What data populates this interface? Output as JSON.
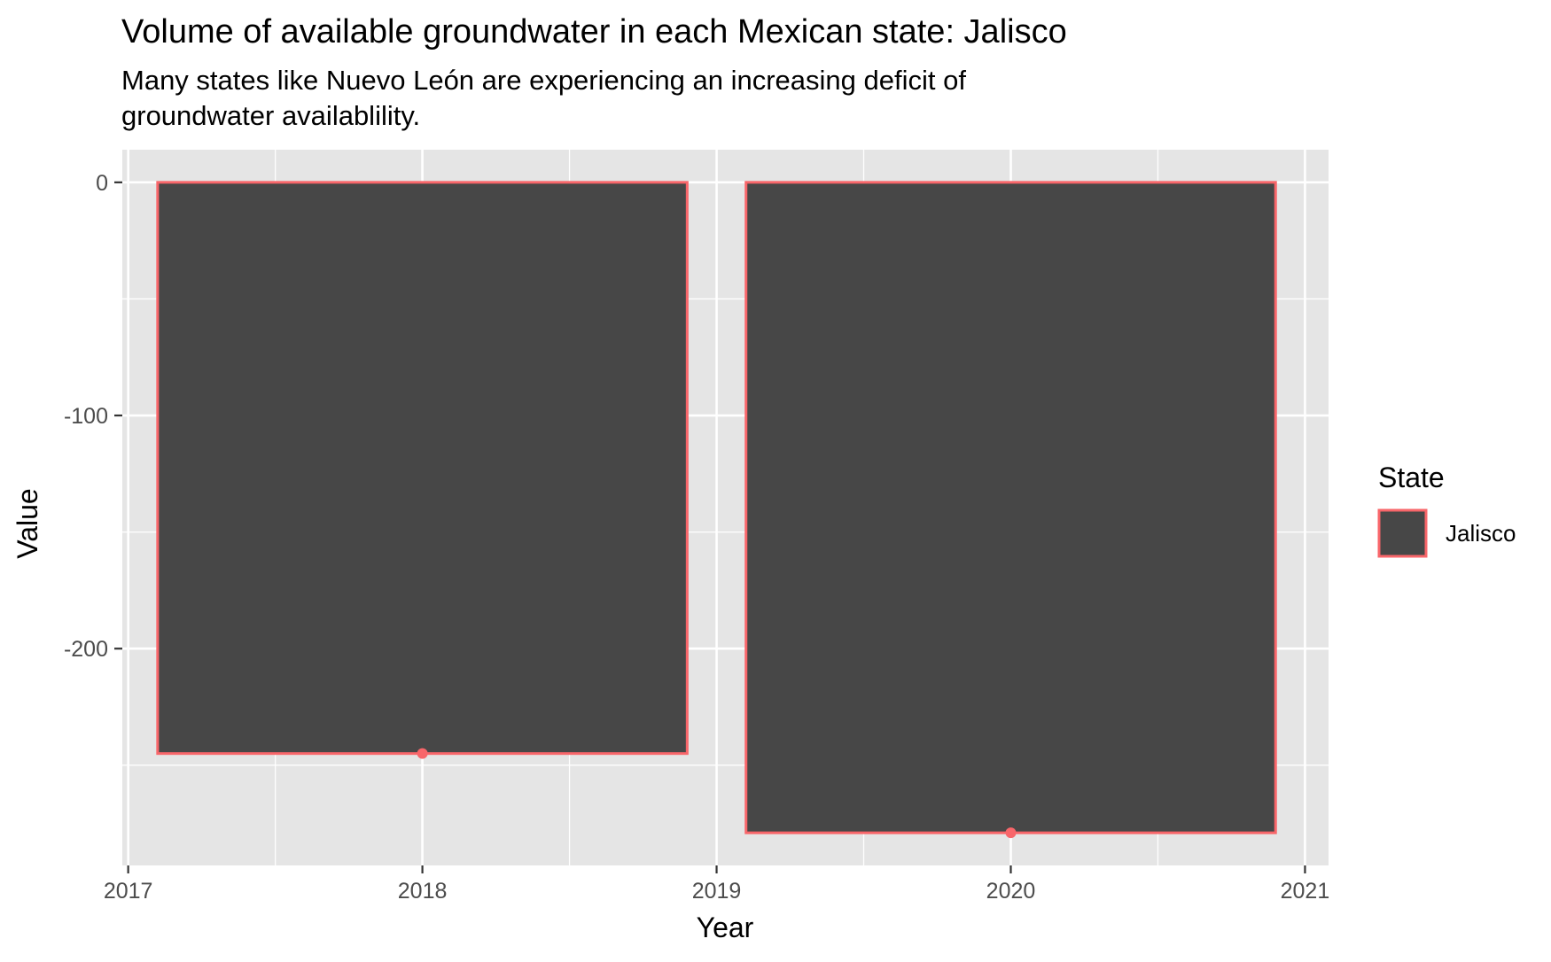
{
  "chart_data": {
    "type": "bar",
    "title": "Volume of available groundwater in each Mexican state: Jalisco",
    "subtitle": "Many states like Nuevo León are experiencing an increasing deficit of groundwater availablility.",
    "xlabel": "Year",
    "ylabel": "Value",
    "x": [
      2018,
      2020
    ],
    "series": [
      {
        "name": "Jalisco",
        "values": [
          -245,
          -279
        ]
      }
    ],
    "xlim": [
      2016.98,
      2021.08
    ],
    "ylim": [
      -293,
      14
    ],
    "xticks": [
      2017,
      2018,
      2019,
      2020,
      2021
    ],
    "yticks": [
      0,
      -100,
      -200
    ],
    "grid": true,
    "legend": {
      "title": "State",
      "position": "right"
    },
    "colors": {
      "panel_background": "#e5e5e5",
      "grid_line": "#ffffff",
      "bar_fill": "#474747",
      "bar_outline": "#f8666a",
      "point": "#f8666a",
      "text": "#000000",
      "tick_text": "#4d4d4d",
      "tick_mark": "#333333"
    }
  }
}
